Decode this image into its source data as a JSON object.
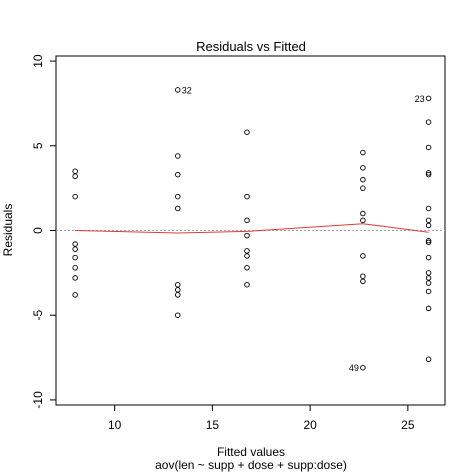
{
  "chart_data": {
    "type": "scatter",
    "title": "Residuals vs Fitted",
    "xlabel": "Fitted values",
    "subtitle": "aov(len ~ supp + dose + supp:dose)",
    "ylabel": "Residuals",
    "xlim": [
      7.0,
      26.9
    ],
    "ylim": [
      -10.3,
      10.3
    ],
    "x_ticks": [
      10,
      15,
      20,
      25
    ],
    "y_ticks": [
      -10,
      -5,
      0,
      5,
      10
    ],
    "x_tick_labels": [
      "10",
      "15",
      "20",
      "25"
    ],
    "y_tick_labels": [
      "-10",
      "-5",
      "0",
      "5",
      "10"
    ],
    "grid": false,
    "zero_line_color": "#a6a6a6",
    "smoother_color": "#e5383b",
    "groups": [
      {
        "x": 7.98,
        "residuals": [
          3.5,
          3.2,
          2.0,
          -0.8,
          -1.1,
          -1.6,
          -2.2,
          -2.8,
          -3.8
        ]
      },
      {
        "x": 13.23,
        "residuals": [
          8.3,
          4.4,
          3.3,
          2.0,
          1.3,
          -3.2,
          -3.5,
          -3.8,
          -5.0
        ]
      },
      {
        "x": 16.77,
        "residuals": [
          5.8,
          2.0,
          0.6,
          -0.3,
          -1.2,
          -1.5,
          -2.2,
          -3.2
        ]
      },
      {
        "x": 22.7,
        "residuals": [
          4.6,
          3.7,
          3.0,
          2.5,
          1.0,
          0.6,
          -1.5,
          -2.7,
          -3.0,
          -8.1
        ]
      },
      {
        "x": 26.06,
        "residuals": [
          7.8,
          6.4,
          4.9,
          3.4,
          3.3,
          1.3,
          0.6,
          0.3,
          -0.6,
          -0.7,
          -1.6,
          -2.5,
          -2.8,
          -3.1,
          -3.6,
          -4.6,
          -7.6
        ]
      }
    ],
    "smoother": [
      {
        "x": 7.98,
        "y": 0.0
      },
      {
        "x": 13.23,
        "y": -0.15
      },
      {
        "x": 16.77,
        "y": -0.05
      },
      {
        "x": 22.7,
        "y": 0.4
      },
      {
        "x": 26.06,
        "y": -0.1
      }
    ],
    "annotations": [
      {
        "label": "32",
        "x": 13.23,
        "y": 8.3,
        "side": "right"
      },
      {
        "label": "23",
        "x": 26.06,
        "y": 7.8,
        "side": "left"
      },
      {
        "label": "49",
        "x": 22.7,
        "y": -8.1,
        "side": "left"
      }
    ]
  }
}
